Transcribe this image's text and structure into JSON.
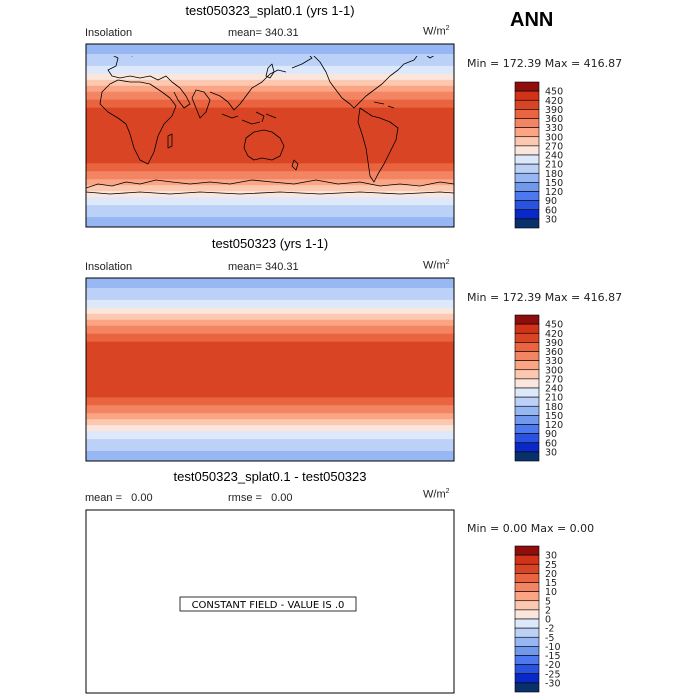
{
  "season": "ANN",
  "colors": {
    "main": [
      "#08306b",
      "#0a28c8",
      "#2a52e0",
      "#4c78f0",
      "#7099ee",
      "#96b6f4",
      "#bcd1f7",
      "#dde8fa",
      "#fbe6dd",
      "#fcc8b0",
      "#fba585",
      "#f38563",
      "#e9643f",
      "#d94524",
      "#d13218",
      "#8e0d0d"
    ],
    "diff": [
      "#08306b",
      "#0a28c8",
      "#2a52e0",
      "#4c78f0",
      "#7099ee",
      "#96b6f4",
      "#bcd1f7",
      "#dde8fa",
      "#fbe6dd",
      "#fcc8b0",
      "#fba585",
      "#f38563",
      "#e9643f",
      "#d94524",
      "#d13218",
      "#8e0d0d"
    ]
  },
  "panels": [
    {
      "title": "test050323_splat0.1 (yrs 1-1)",
      "left_label": "Insolation",
      "mean_label": "mean=",
      "mean_value": "340.31",
      "units_base": "W/m",
      "units_exp": "2",
      "minmax": "Min = 172.39 Max = 416.87",
      "levels": [
        "450",
        "420",
        "390",
        "360",
        "330",
        "300",
        "270",
        "240",
        "210",
        "180",
        "150",
        "120",
        "90",
        "60",
        "30"
      ]
    },
    {
      "title": "test050323 (yrs 1-1)",
      "left_label": "Insolation",
      "mean_label": "mean=",
      "mean_value": "340.31",
      "units_base": "W/m",
      "units_exp": "2",
      "minmax": "Min = 172.39 Max = 416.87",
      "levels": [
        "450",
        "420",
        "390",
        "360",
        "330",
        "300",
        "270",
        "240",
        "210",
        "180",
        "150",
        "120",
        "90",
        "60",
        "30"
      ]
    },
    {
      "title": "test050323_splat0.1 - test050323",
      "left_label": "mean =",
      "left_value": "0.00",
      "rmse_label": "rmse =",
      "rmse_value": "0.00",
      "units_base": "W/m",
      "units_exp": "2",
      "minmax": "Min =   0.00 Max =   0.00",
      "constant_note": "CONSTANT FIELD - VALUE IS .0",
      "levels": [
        "30",
        "25",
        "20",
        "15",
        "10",
        "5",
        "2",
        "0",
        "-2",
        "-5",
        "-10",
        "-15",
        "-20",
        "-25",
        "-30"
      ]
    }
  ],
  "chart_data": [
    {
      "type": "heatmap",
      "title": "test050323_splat0.1 (yrs 1-1)",
      "variable": "Insolation",
      "units": "W/m2",
      "mean": 340.31,
      "min": 172.39,
      "max": 416.87,
      "colorbar_levels": [
        30,
        60,
        90,
        120,
        150,
        180,
        210,
        240,
        270,
        300,
        330,
        360,
        390,
        420,
        450
      ],
      "zonal_profile": {
        "lat": [
          90,
          80,
          70,
          60,
          50,
          40,
          30,
          20,
          10,
          0,
          -10,
          -20,
          -30,
          -40,
          -50,
          -60,
          -70,
          -80,
          -90
        ],
        "value": [
          173,
          180,
          200,
          245,
          295,
          340,
          382,
          405,
          415,
          417,
          415,
          405,
          382,
          340,
          295,
          245,
          200,
          180,
          173
        ]
      }
    },
    {
      "type": "heatmap",
      "title": "test050323 (yrs 1-1)",
      "variable": "Insolation",
      "units": "W/m2",
      "mean": 340.31,
      "min": 172.39,
      "max": 416.87,
      "colorbar_levels": [
        30,
        60,
        90,
        120,
        150,
        180,
        210,
        240,
        270,
        300,
        330,
        360,
        390,
        420,
        450
      ],
      "zonal_profile": {
        "lat": [
          90,
          80,
          70,
          60,
          50,
          40,
          30,
          20,
          10,
          0,
          -10,
          -20,
          -30,
          -40,
          -50,
          -60,
          -70,
          -80,
          -90
        ],
        "value": [
          173,
          180,
          200,
          245,
          295,
          340,
          382,
          405,
          415,
          417,
          415,
          405,
          382,
          340,
          295,
          245,
          200,
          180,
          173
        ]
      }
    },
    {
      "type": "heatmap",
      "title": "test050323_splat0.1 - test050323",
      "units": "W/m2",
      "mean": 0.0,
      "rmse": 0.0,
      "min": 0.0,
      "max": 0.0,
      "annotation": "CONSTANT FIELD - VALUE IS .0",
      "colorbar_levels": [
        -30,
        -25,
        -20,
        -15,
        -10,
        -5,
        -2,
        0,
        2,
        5,
        10,
        15,
        20,
        25,
        30
      ]
    }
  ]
}
